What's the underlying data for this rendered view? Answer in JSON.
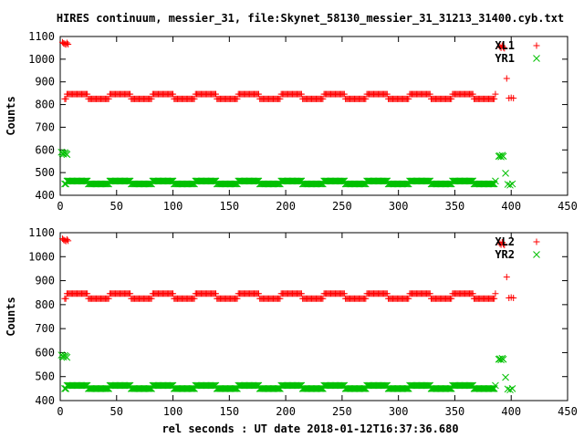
{
  "figure": {
    "title": "HIRES continuum, messier_31, file:Skynet_58130_messier_31_31213_31400.cyb.txt",
    "xlabel": "rel seconds : UT date 2018-01-12T16:37:36.680"
  },
  "colors": {
    "red_series": "#ff0000",
    "green_series": "#00c000",
    "axes": "#000000",
    "background": "#ffffff"
  },
  "chart_data": [
    {
      "type": "scatter",
      "ylabel": "Counts",
      "xlim": [
        0,
        450
      ],
      "ylim": [
        400,
        1100
      ],
      "x_ticks": [
        "0",
        "50",
        "100",
        "150",
        "200",
        "250",
        "300",
        "350",
        "400",
        "450"
      ],
      "y_ticks": [
        "400",
        "500",
        "600",
        "700",
        "800",
        "900",
        "1000",
        "1100"
      ],
      "grid": false,
      "legend_position": "top-right",
      "series": [
        {
          "name": "XL1",
          "marker": "+",
          "color": "#ff0000",
          "points": [
            [
              2,
              1075
            ],
            [
              3,
              1070
            ],
            [
              4,
              1068
            ],
            [
              5,
              1065
            ],
            [
              6,
              1072
            ],
            [
              7,
              1066
            ],
            [
              390,
              1055
            ],
            [
              391,
              1050
            ],
            [
              392,
              1060
            ],
            [
              393,
              1052
            ],
            [
              394,
              1048
            ],
            [
              396,
              915
            ],
            [
              398,
              828
            ],
            [
              400,
              830
            ],
            [
              402,
              828
            ]
          ],
          "baseline": {
            "x_start": 4,
            "x_end": 386,
            "step": 1,
            "period": 38,
            "phase": 6,
            "high": 846,
            "low": 825
          }
        },
        {
          "name": "YR1",
          "marker": "x",
          "color": "#00c000",
          "points": [
            [
              1,
              590
            ],
            [
              2,
              585
            ],
            [
              3,
              582
            ],
            [
              4,
              588
            ],
            [
              5,
              584
            ],
            [
              6,
              580
            ],
            [
              389,
              572
            ],
            [
              390,
              574
            ],
            [
              391,
              570
            ],
            [
              392,
              576
            ],
            [
              393,
              572
            ],
            [
              395,
              497
            ],
            [
              397,
              448
            ],
            [
              399,
              445
            ],
            [
              401,
              450
            ]
          ],
          "baseline": {
            "x_start": 4,
            "x_end": 386,
            "step": 1,
            "period": 38,
            "phase": 6,
            "high": 463,
            "low": 450
          }
        }
      ]
    },
    {
      "type": "scatter",
      "ylabel": "Counts",
      "xlim": [
        0,
        450
      ],
      "ylim": [
        400,
        1100
      ],
      "x_ticks": [
        "0",
        "50",
        "100",
        "150",
        "200",
        "250",
        "300",
        "350",
        "400",
        "450"
      ],
      "y_ticks": [
        "400",
        "500",
        "600",
        "700",
        "800",
        "900",
        "1000",
        "1100"
      ],
      "grid": false,
      "legend_position": "top-right",
      "series": [
        {
          "name": "XL2",
          "marker": "+",
          "color": "#ff0000",
          "points": [
            [
              2,
              1075
            ],
            [
              3,
              1070
            ],
            [
              4,
              1068
            ],
            [
              5,
              1065
            ],
            [
              6,
              1072
            ],
            [
              7,
              1066
            ],
            [
              390,
              1055
            ],
            [
              391,
              1050
            ],
            [
              392,
              1060
            ],
            [
              393,
              1052
            ],
            [
              394,
              1048
            ],
            [
              396,
              915
            ],
            [
              398,
              828
            ],
            [
              400,
              830
            ],
            [
              402,
              828
            ]
          ],
          "baseline": {
            "x_start": 4,
            "x_end": 386,
            "step": 1,
            "period": 38,
            "phase": 6,
            "high": 846,
            "low": 825
          }
        },
        {
          "name": "YR2",
          "marker": "x",
          "color": "#00c000",
          "points": [
            [
              1,
              590
            ],
            [
              2,
              585
            ],
            [
              3,
              582
            ],
            [
              4,
              588
            ],
            [
              5,
              584
            ],
            [
              6,
              580
            ],
            [
              389,
              572
            ],
            [
              390,
              574
            ],
            [
              391,
              570
            ],
            [
              392,
              576
            ],
            [
              393,
              572
            ],
            [
              395,
              497
            ],
            [
              397,
              448
            ],
            [
              399,
              445
            ],
            [
              401,
              450
            ]
          ],
          "baseline": {
            "x_start": 4,
            "x_end": 386,
            "step": 1,
            "period": 38,
            "phase": 6,
            "high": 463,
            "low": 450
          }
        }
      ]
    }
  ]
}
